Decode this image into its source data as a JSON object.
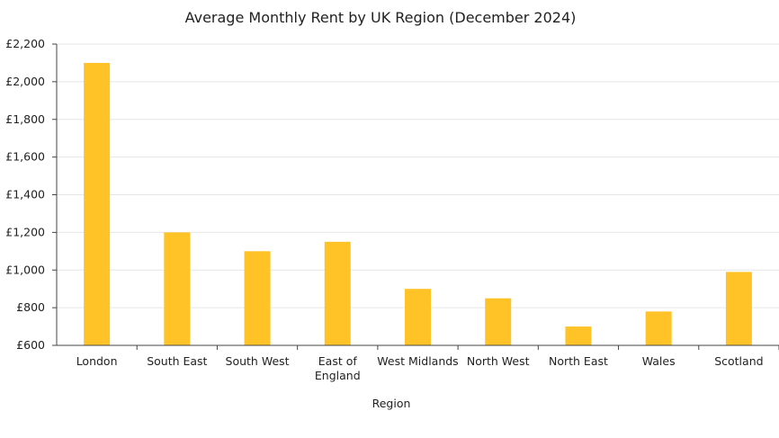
{
  "chart_data": {
    "type": "bar",
    "title": "Average Monthly Rent by UK Region (December 2024)",
    "xlabel": "Region",
    "ylabel": "",
    "categories": [
      "London",
      "South East",
      "South West",
      "East of England",
      "West Midlands",
      "North West",
      "North East",
      "Wales",
      "Scotland"
    ],
    "category_lines": [
      [
        "London"
      ],
      [
        "South East"
      ],
      [
        "South West"
      ],
      [
        "East of",
        "England"
      ],
      [
        "West Midlands"
      ],
      [
        "North West"
      ],
      [
        "North East"
      ],
      [
        "Wales"
      ],
      [
        "Scotland"
      ]
    ],
    "values": [
      2100,
      1200,
      1100,
      1150,
      900,
      850,
      700,
      780,
      990
    ],
    "ylim": [
      600,
      2200
    ],
    "yticks": [
      600,
      800,
      1000,
      1200,
      1400,
      1600,
      1800,
      2000,
      2200
    ],
    "ytick_labels": [
      "£600",
      "£800",
      "£1,000",
      "£1,200",
      "£1,400",
      "£1,600",
      "£1,800",
      "£2,000",
      "£2,200"
    ],
    "grid": true,
    "bar_color": "#FFC328",
    "grid_color": "#E6E6E6",
    "axis_color": "#444444"
  }
}
